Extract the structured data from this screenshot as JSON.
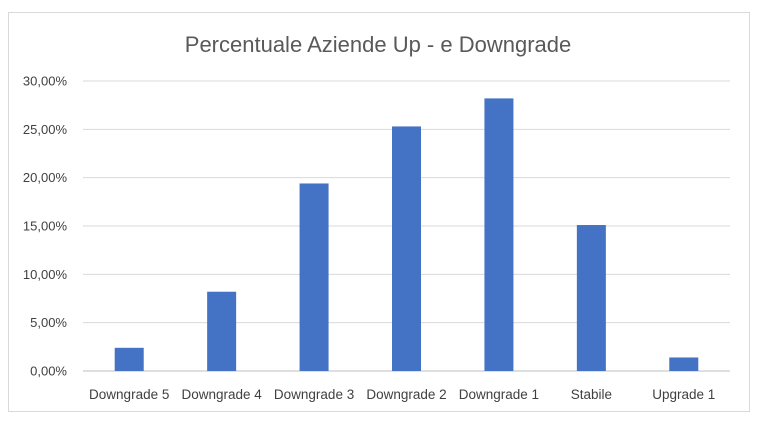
{
  "chart_data": {
    "type": "bar",
    "title": "Percentuale Aziende Up - e Downgrade",
    "xlabel": "",
    "ylabel": "",
    "categories": [
      "Downgrade 5",
      "Downgrade 4",
      "Downgrade 3",
      "Downgrade 2",
      "Downgrade 1",
      "Stabile",
      "Upgrade 1"
    ],
    "values": [
      2.4,
      8.2,
      19.4,
      25.3,
      28.2,
      15.1,
      1.4
    ],
    "ylim": [
      0,
      30
    ],
    "yticks": [
      0,
      5,
      10,
      15,
      20,
      25,
      30
    ],
    "ytick_labels": [
      "0,00%",
      "5,00%",
      "10,00%",
      "15,00%",
      "20,00%",
      "25,00%",
      "30,00%"
    ],
    "grid": true,
    "legend": "none",
    "bar_color": "#4472c4"
  }
}
